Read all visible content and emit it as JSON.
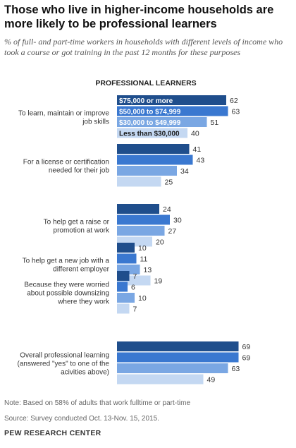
{
  "header": {
    "title": "Those who live in higher-income households are more likely to be professional  learners",
    "subtitle": "% of full- and part-time workers in households with different levels of income who took a course or got training in the past 12 months for these purposes"
  },
  "chart_data": {
    "type": "bar",
    "orientation": "horizontal",
    "title": "PROFESSIONAL LEARNERS",
    "categories": [
      [
        "To learn, maintain or improve",
        "job skills"
      ],
      [
        "For a license or certification",
        "needed for their job"
      ],
      [
        "To help get a raise or",
        "promotion at work"
      ],
      [
        "To help get a new job with a",
        "different employer"
      ],
      [
        "Because they were worried",
        "about possible downsizing",
        "where they work"
      ],
      [
        "Overall professional learning",
        "(answered \"yes\" to one of the",
        "acivities above)"
      ]
    ],
    "series": [
      {
        "name": "$75,000  or more",
        "color": "#1f4e8c",
        "values": [
          62,
          41,
          24,
          10,
          7,
          69
        ]
      },
      {
        "name": "$50,000  to $74,999",
        "color": "#3a78d0",
        "values": [
          63,
          43,
          30,
          11,
          6,
          69
        ]
      },
      {
        "name": "$30,000  to $49,999",
        "color": "#7aa7e3",
        "values": [
          51,
          34,
          27,
          13,
          10,
          63
        ]
      },
      {
        "name": "Less than $30,000",
        "color": "#c4d8f2",
        "values": [
          40,
          25,
          20,
          19,
          7,
          49
        ]
      }
    ],
    "legend": "inside first group bars",
    "xlim": [
      0,
      100
    ],
    "grid": false
  },
  "footer": {
    "note": "Note: Based on 58% of adults that work fulltime or part-time",
    "source": "Source:  Survey conducted Oct. 13-Nov. 15, 2015.",
    "brand": "PEW RESEARCH CENTER"
  }
}
